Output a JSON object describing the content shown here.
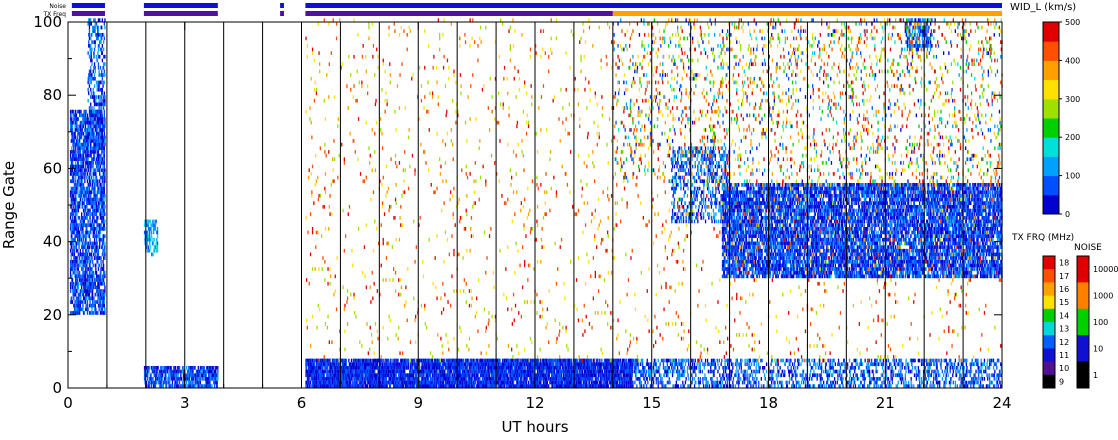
{
  "chart_data": {
    "type": "heatmap",
    "title": "",
    "xlabel": "UT hours",
    "ylabel": "Range Gate",
    "xlim": [
      0,
      24
    ],
    "ylim": [
      0,
      100
    ],
    "x_ticks": [
      0,
      3,
      6,
      9,
      12,
      15,
      18,
      21,
      24
    ],
    "y_ticks": [
      0,
      20,
      40,
      60,
      80,
      100
    ],
    "minor_x_gridlines_hours": [
      1,
      2,
      3,
      4,
      5,
      6,
      7,
      8,
      9,
      10,
      11,
      12,
      13,
      14,
      15,
      16,
      17,
      18,
      19,
      20,
      21,
      22,
      23
    ],
    "strip_labels": {
      "noise": "Noise",
      "txfreq": "TX Freq"
    },
    "colorbars": [
      {
        "name": "width",
        "title": "WID_L (km/s)",
        "range": [
          0,
          500
        ],
        "tick_labels": [
          "500",
          "400",
          "300",
          "200",
          "100",
          "0"
        ],
        "colors": [
          "#0000d0",
          "#0050ff",
          "#00a0ff",
          "#00e0d8",
          "#00d000",
          "#a0e000",
          "#ffe000",
          "#ffa000",
          "#ff5000",
          "#e00000"
        ]
      },
      {
        "name": "txfreq",
        "title": "TX FRQ (MHz)",
        "tick_labels": [
          "18",
          "17",
          "16",
          "15",
          "14",
          "13",
          "12",
          "11",
          "10",
          "9"
        ],
        "colors": [
          "#e00000",
          "#ff5000",
          "#ffa000",
          "#ffe000",
          "#00d000",
          "#00d8d8",
          "#0060ff",
          "#1010d0",
          "#501090",
          "#000000"
        ]
      },
      {
        "name": "noise",
        "title": "NOISE",
        "tick_labels": [
          "10000",
          "1000",
          "100",
          "10",
          "1"
        ],
        "colors": [
          "#e00000",
          "#ff8000",
          "#00d000",
          "#1010d0",
          "#000000"
        ]
      }
    ],
    "noise_strip_segments": [
      [
        0.1,
        0.95
      ],
      [
        1.95,
        3.85
      ],
      [
        5.45,
        5.55
      ],
      [
        6.1,
        24.0
      ]
    ],
    "txfreq_strip_segments": [
      {
        "start": 0.1,
        "end": 0.95,
        "color": "#5010a0"
      },
      {
        "start": 1.95,
        "end": 3.85,
        "color": "#5010a0"
      },
      {
        "start": 5.45,
        "end": 5.55,
        "color": "#5010a0"
      },
      {
        "start": 6.1,
        "end": 14.0,
        "color": "#5010a0"
      },
      {
        "start": 14.0,
        "end": 24.0,
        "color": "#ffa000"
      }
    ],
    "scatter_regions": [
      {
        "name": "early_echoes",
        "x": [
          0.05,
          0.95
        ],
        "gates": [
          20,
          75
        ],
        "density": 0.55,
        "width_kms": [
          0,
          120
        ]
      },
      {
        "name": "early_upper",
        "x": [
          0.5,
          0.95
        ],
        "gates": [
          65,
          100
        ],
        "density": 0.3,
        "width_kms": [
          0,
          150
        ]
      },
      {
        "name": "pre_dawn",
        "x": [
          1.95,
          2.3
        ],
        "gates": [
          36,
          45
        ],
        "density": 0.4,
        "width_kms": [
          50,
          200
        ]
      },
      {
        "name": "near_range_early",
        "x": [
          1.95,
          3.85
        ],
        "gates": [
          0,
          5
        ],
        "density": 0.6,
        "width_kms": [
          0,
          120
        ]
      },
      {
        "name": "near_range",
        "x": [
          6.1,
          14.5
        ],
        "gates": [
          0,
          7
        ],
        "density": 0.8,
        "width_kms": [
          0,
          100
        ]
      },
      {
        "name": "near_range_late",
        "x": [
          14.5,
          24.0
        ],
        "gates": [
          0,
          7
        ],
        "density": 0.3,
        "width_kms": [
          0,
          150
        ]
      },
      {
        "name": "main_band",
        "x": [
          16.8,
          24.0
        ],
        "gates": [
          30,
          55
        ],
        "density": 0.6,
        "width_kms": [
          0,
          120
        ]
      },
      {
        "name": "band_precursor",
        "x": [
          15.5,
          17.0
        ],
        "gates": [
          45,
          65
        ],
        "density": 0.25,
        "width_kms": [
          0,
          150
        ]
      },
      {
        "name": "upper_patch",
        "x": [
          21.5,
          22.2
        ],
        "gates": [
          92,
          100
        ],
        "density": 0.4,
        "width_kms": [
          0,
          150
        ]
      },
      {
        "name": "upper_late",
        "x": [
          14.0,
          24.0
        ],
        "gates": [
          55,
          100
        ],
        "density": 0.06,
        "width_kms": [
          0,
          500
        ]
      },
      {
        "name": "sparse_background",
        "x": [
          6.1,
          24.0
        ],
        "gates": [
          7,
          100
        ],
        "density": 0.02,
        "width_kms": [
          250,
          500
        ]
      }
    ]
  }
}
